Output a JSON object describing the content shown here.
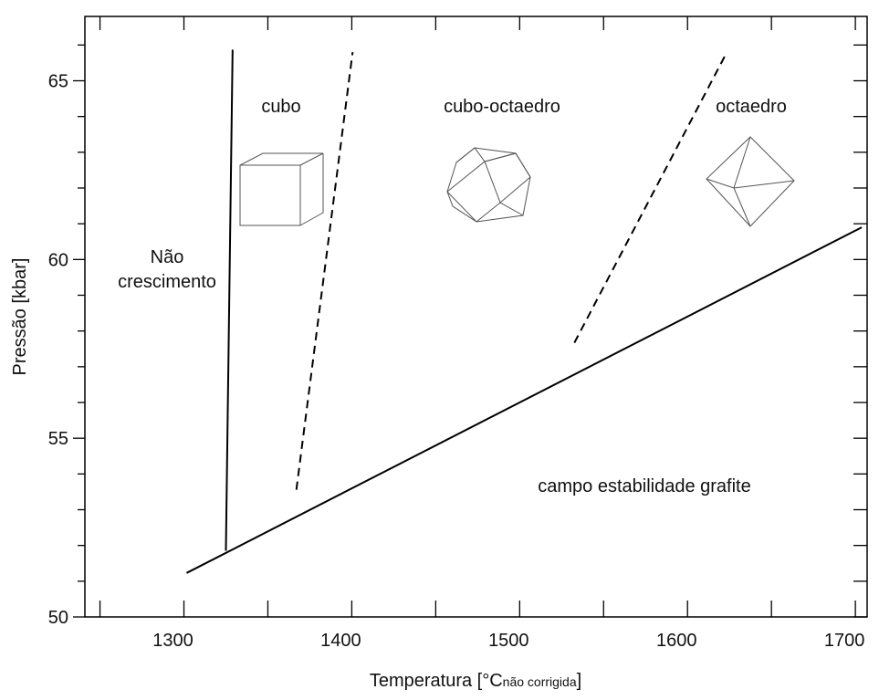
{
  "chart_data": {
    "type": "line",
    "xlabel": {
      "main": "Temperatura [°C",
      "sub": "não corrigida",
      "close": "]"
    },
    "ylabel": "Pressão [kbar]",
    "xlim": [
      1241,
      1707
    ],
    "ylim": [
      50,
      66.8
    ],
    "xticks": [
      1300,
      1400,
      1500,
      1600,
      1700
    ],
    "xminor_ticks": [
      1250,
      1350,
      1450,
      1550,
      1650
    ],
    "yticks": [
      50,
      55,
      60,
      65
    ],
    "yminor_ticks": [
      51,
      52,
      53,
      54,
      56,
      57,
      58,
      59,
      61,
      62,
      63,
      64,
      66
    ],
    "series": [
      {
        "color": "#000000",
        "dashed": false,
        "x": [
          1325,
          1329
        ],
        "values": [
          51.85,
          65.87
        ]
      },
      {
        "color": "#000000",
        "dashed": true,
        "x": [
          1367,
          1400.5
        ],
        "values": [
          53.56,
          65.8
        ]
      },
      {
        "color": "#000000",
        "dashed": true,
        "x": [
          1532.6,
          1622.8
        ],
        "values": [
          57.67,
          65.74
        ]
      },
      {
        "color": "#000000",
        "dashed": false,
        "x": [
          1301.6,
          1703.8
        ],
        "values": [
          51.23,
          60.9
        ]
      }
    ],
    "annotations": [
      [
        "Não",
        "crescimento"
      ],
      [
        "cubo"
      ],
      [
        "cubo-octaedro"
      ],
      [
        "octaedro"
      ],
      [
        "campo estabilidade grafite"
      ]
    ]
  }
}
